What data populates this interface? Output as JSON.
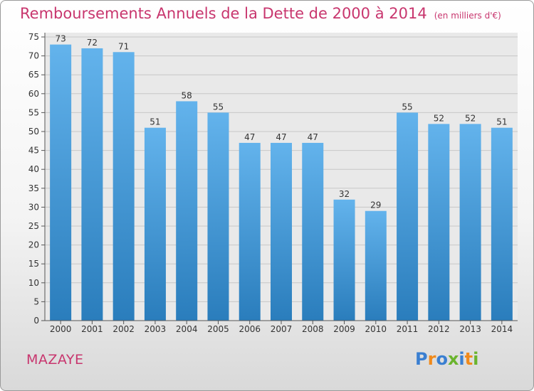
{
  "title": "Remboursements Annuels de la Dette de 2000 à 2014",
  "unit_note": "(en milliers d'€)",
  "commune": "MAZAYE",
  "logo": {
    "letters": [
      "P",
      "r",
      "o",
      "x",
      "i",
      "t",
      "i"
    ],
    "colors": [
      "#3a7fd1",
      "#f08a1c",
      "#3a7fd1",
      "#6ab42d",
      "#3a7fd1",
      "#f08a1c",
      "#6ab42d"
    ]
  },
  "colors": {
    "bar_light": "#63b3ec",
    "bar_dark": "#2a7dbc",
    "title": "#c8366e"
  },
  "chart_data": {
    "type": "bar",
    "title": "Remboursements Annuels de la Dette de 2000 à 2014",
    "categories": [
      "2000",
      "2001",
      "2002",
      "2003",
      "2004",
      "2005",
      "2006",
      "2007",
      "2008",
      "2009",
      "2010",
      "2011",
      "2012",
      "2013",
      "2014"
    ],
    "values": [
      73,
      72,
      71,
      51,
      58,
      55,
      47,
      47,
      47,
      32,
      29,
      55,
      52,
      52,
      51
    ],
    "ylim": [
      0,
      75
    ],
    "yticks": [
      0,
      5,
      10,
      15,
      20,
      25,
      30,
      35,
      40,
      45,
      50,
      55,
      60,
      65,
      70,
      75
    ],
    "grid": true,
    "data_labels": true
  }
}
